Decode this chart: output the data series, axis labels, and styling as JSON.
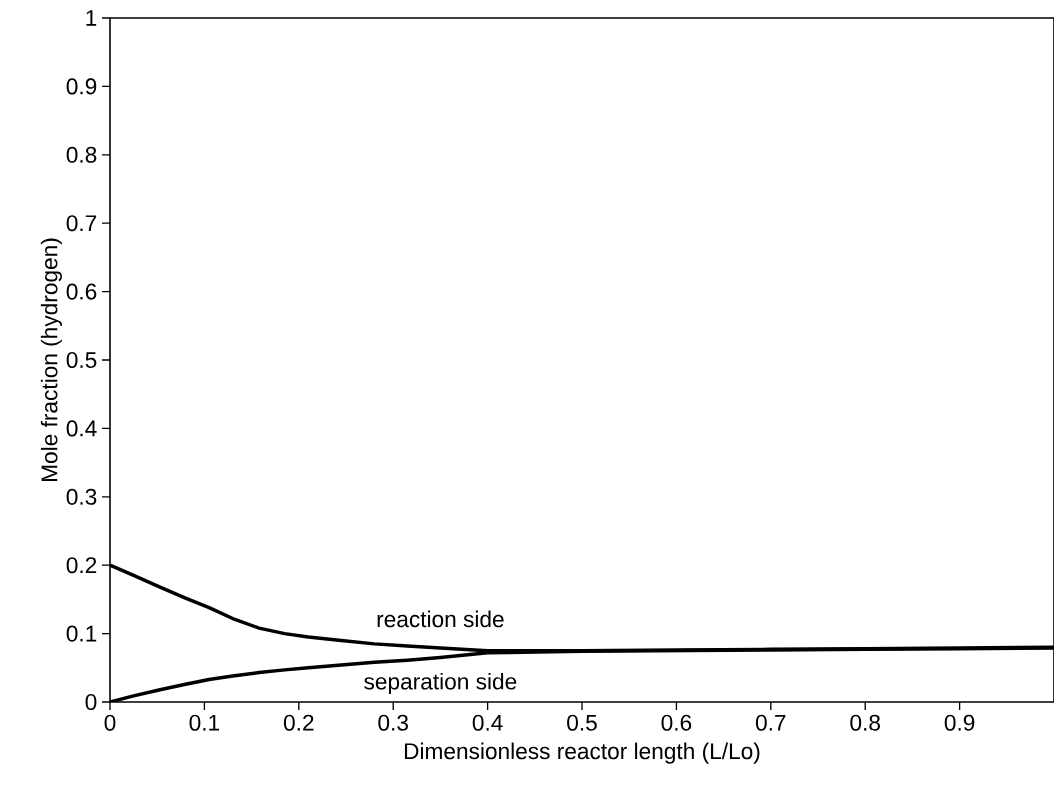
{
  "chart_data": {
    "type": "line",
    "xlabel": "Dimensionless reactor length (L/Lo)",
    "ylabel": "Mole fraction (hydrogen)",
    "series": [
      {
        "color": "#000000",
        "x": [
          0,
          0.025,
          0.053,
          0.08,
          0.105,
          0.13,
          0.158,
          0.185,
          0.21,
          0.245,
          0.28,
          0.315,
          0.35,
          0.4,
          0.5,
          0.6,
          0.7,
          0.8,
          0.9,
          1.0
        ],
        "values": [
          0.2,
          0.185,
          0.168,
          0.152,
          0.138,
          0.122,
          0.108,
          0.1,
          0.095,
          0.09,
          0.085,
          0.082,
          0.079,
          0.075,
          0.075,
          0.076,
          0.077,
          0.078,
          0.079,
          0.08
        ]
      },
      {
        "color": "#000000",
        "x": [
          0,
          0.025,
          0.053,
          0.08,
          0.105,
          0.13,
          0.158,
          0.185,
          0.21,
          0.245,
          0.28,
          0.315,
          0.35,
          0.4,
          0.5,
          0.6,
          0.7,
          0.8,
          0.9,
          1.0
        ],
        "values": [
          0,
          0.009,
          0.018,
          0.026,
          0.033,
          0.038,
          0.043,
          0.047,
          0.05,
          0.054,
          0.058,
          0.061,
          0.065,
          0.072,
          0.074,
          0.075,
          0.076,
          0.077,
          0.078,
          0.079
        ]
      }
    ],
    "annotations": [
      "reaction side",
      "separation side"
    ],
    "xlim": [
      0,
      1
    ],
    "ylim": [
      0,
      1
    ],
    "xticks": [
      0,
      0.1,
      0.2,
      0.3,
      0.4,
      0.5,
      0.6,
      0.7,
      0.8,
      0.9
    ],
    "yticks": [
      0,
      0.1,
      0.2,
      0.3,
      0.4,
      0.5,
      0.6,
      0.7,
      0.8,
      0.9,
      1
    ],
    "line_style": "solid",
    "marker": "none",
    "grid": false
  }
}
